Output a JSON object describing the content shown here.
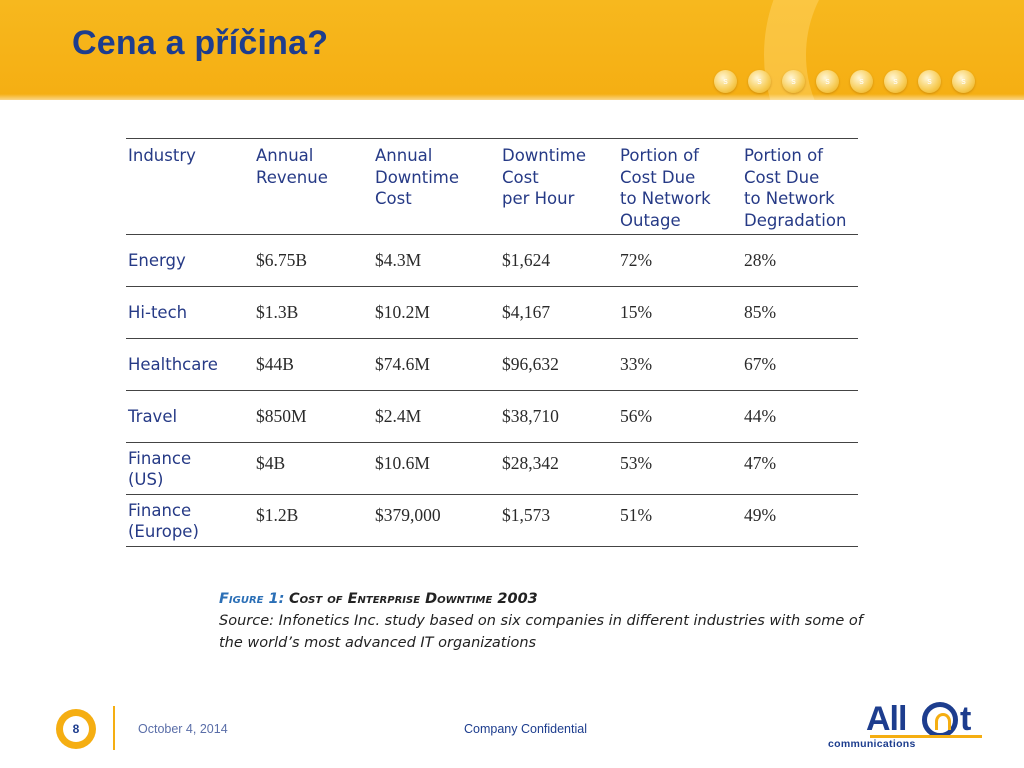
{
  "slide": {
    "title": "Cena a příčina?",
    "dots": [
      "s",
      "s",
      "s",
      "s",
      "s",
      "s",
      "s",
      "s"
    ]
  },
  "table": {
    "headers": [
      "Industry",
      "Annual\nRevenue",
      "Annual\nDowntime\nCost",
      "Downtime\nCost\nper Hour",
      "Portion of\nCost Due\nto Network\nOutage",
      "Portion of\nCost Due\nto Network\nDegradation"
    ],
    "rows": [
      [
        "Energy",
        "$6.75B",
        "$4.3M",
        "$1,624",
        "72%",
        "28%"
      ],
      [
        "Hi-tech",
        "$1.3B",
        "$10.2M",
        "$4,167",
        "15%",
        "85%"
      ],
      [
        "Healthcare",
        "$44B",
        "$74.6M",
        "$96,632",
        "33%",
        "67%"
      ],
      [
        "Travel",
        "$850M",
        "$2.4M",
        "$38,710",
        "56%",
        "44%"
      ],
      [
        "Finance\n(US)",
        "$4B",
        "$10.6M",
        "$28,342",
        "53%",
        "47%"
      ],
      [
        "Finance\n(Europe)",
        "$1.2B",
        "$379,000",
        "$1,573",
        "51%",
        "49%"
      ]
    ]
  },
  "caption": {
    "label": "Figure 1:",
    "title": "Cost of Enterprise Downtime 2003",
    "source": "Source: Infonetics Inc. study based on six companies in different industries with some of the world’s most advanced IT organizations"
  },
  "footer": {
    "page_number": "8",
    "date": "October 4, 2014",
    "confidential": "Company Confidential",
    "logo_word": "All",
    "logo_tail": "t",
    "logo_sub": "communications"
  },
  "colors": {
    "brand_orange": "#f5ae12",
    "brand_blue": "#1d3d8e",
    "caption_blue": "#2b6fb6"
  }
}
